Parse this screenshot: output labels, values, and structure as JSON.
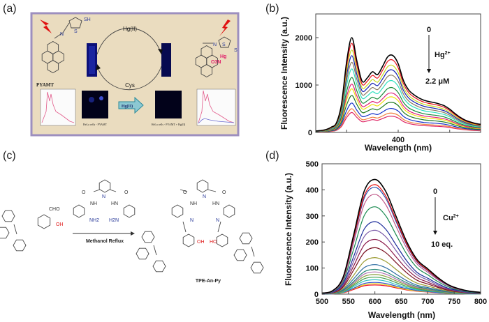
{
  "panel_labels": [
    "(a)",
    "(b)",
    "(c)",
    "(d)"
  ],
  "panel_a": {
    "probe_name": "PYAMT",
    "forward_reagent": "Hg(II)",
    "reverse_reagent": "Cys",
    "thiol_label": "SH",
    "n_label": "N",
    "s_label": "S",
    "metal_label": "Hg",
    "nitrate_label": "O3N",
    "arrow_label": "Hg(II)",
    "caption_left": "HeLa cells - PYAMT",
    "caption_right": "HeLa cells - PYAMT + Hg(II)",
    "colors": {
      "frame": "#9d8fbf",
      "background": "#eadcbf",
      "cuvette": "#0b0f78",
      "arrow": "#6fb6c4",
      "bolt": "#e01010"
    }
  },
  "panel_c": {
    "aldehyde_label": "CHO",
    "hydroxyl_label": "OH",
    "hydroxyl_label_rev": "HO",
    "amide_nh_left": "NH",
    "amide_nh_right": "HN",
    "amine_left": "NH2",
    "amine_right": "H2N",
    "pyridine_n": "N",
    "carbonyl_o": "O",
    "imine_n": "N",
    "condition": "Methanol Reflux",
    "product_name": "TPE-An-Py"
  },
  "chart_data": [
    {
      "type": "line",
      "panel": "(b)",
      "xlabel": "Wavelength (nm)",
      "ylabel": "Fluorescence Intensity (a.u.)",
      "xlim": [
        320,
        480
      ],
      "ylim": [
        0,
        2500
      ],
      "xticks": [
        350,
        400,
        450
      ],
      "xtick_labels": [
        "",
        "400",
        ""
      ],
      "yticks": [
        0,
        1000,
        2000
      ],
      "ytick_labels": [
        "0",
        "1000",
        "2000"
      ],
      "grid": false,
      "annotation": {
        "start": "0",
        "analyte": "Hg2+",
        "analyte_base": "Hg",
        "analyte_sup": "2+",
        "end": "2.2 μM",
        "direction": "down"
      },
      "x": [
        320,
        325,
        330,
        335,
        340,
        345,
        350,
        355,
        360,
        365,
        370,
        375,
        380,
        385,
        390,
        395,
        400,
        405,
        410,
        415,
        420,
        425,
        430,
        435,
        440,
        445,
        450,
        455,
        460,
        465,
        470,
        475,
        480
      ],
      "series": [
        {
          "color": "#000000",
          "values": [
            30,
            40,
            60,
            110,
            200,
            600,
            1500,
            2000,
            1500,
            1080,
            1150,
            1280,
            1220,
            1400,
            1600,
            1620,
            1450,
            1100,
            900,
            800,
            730,
            680,
            650,
            630,
            600,
            560,
            490,
            400,
            320,
            260,
            220,
            190,
            170
          ]
        },
        {
          "color": "#e8101a",
          "values": [
            28,
            38,
            56,
            103,
            188,
            564,
            1410,
            1880,
            1410,
            1015,
            1081,
            1203,
            1147,
            1316,
            1504,
            1523,
            1363,
            1034,
            846,
            752,
            686,
            639,
            611,
            592,
            564,
            526,
            461,
            376,
            301,
            244,
            207,
            179,
            160
          ]
        },
        {
          "color": "#c8d820",
          "values": [
            26,
            35,
            52,
            96,
            174,
            522,
            1305,
            1740,
            1305,
            940,
            1000,
            1114,
            1061,
            1218,
            1392,
            1409,
            1262,
            957,
            783,
            696,
            635,
            592,
            566,
            548,
            522,
            487,
            426,
            348,
            278,
            226,
            191,
            165,
            148
          ]
        },
        {
          "color": "#1420b0",
          "values": [
            24,
            32,
            49,
            89,
            162,
            486,
            1215,
            1620,
            1215,
            875,
            932,
            1037,
            988,
            1134,
            1296,
            1312,
            1175,
            891,
            729,
            648,
            591,
            551,
            527,
            510,
            486,
            454,
            397,
            324,
            259,
            211,
            178,
            154,
            138
          ]
        },
        {
          "color": "#8a7a60",
          "values": [
            22,
            30,
            44,
            81,
            148,
            444,
            1110,
            1480,
            1110,
            799,
            851,
            947,
            903,
            1036,
            1184,
            1199,
            1073,
            814,
            666,
            592,
            540,
            503,
            481,
            466,
            444,
            414,
            363,
            296,
            237,
            192,
            163,
            141,
            126
          ]
        },
        {
          "color": "#30e0c0",
          "values": [
            20,
            27,
            40,
            74,
            134,
            402,
            1005,
            1340,
            1005,
            724,
            771,
            858,
            817,
            938,
            1072,
            1085,
            972,
            737,
            603,
            536,
            489,
            456,
            436,
            422,
            402,
            375,
            328,
            268,
            214,
            174,
            147,
            127,
            114
          ]
        },
        {
          "color": "#1a8a3a",
          "values": [
            17,
            23,
            35,
            64,
            116,
            348,
            870,
            1160,
            870,
            626,
            667,
            742,
            708,
            812,
            928,
            940,
            841,
            638,
            522,
            464,
            423,
            394,
            377,
            365,
            348,
            325,
            284,
            232,
            186,
            151,
            128,
            110,
            99
          ]
        },
        {
          "color": "#e0207a",
          "values": [
            15,
            20,
            31,
            56,
            102,
            306,
            765,
            1020,
            765,
            551,
            587,
            653,
            622,
            714,
            816,
            826,
            740,
            561,
            459,
            408,
            372,
            347,
            332,
            321,
            306,
            286,
            250,
            204,
            163,
            133,
            112,
            97,
            87
          ]
        },
        {
          "color": "#f0e010",
          "values": [
            14,
            18,
            28,
            51,
            92,
            276,
            690,
            920,
            690,
            497,
            529,
            589,
            561,
            644,
            736,
            745,
            667,
            506,
            414,
            368,
            336,
            313,
            299,
            290,
            276,
            258,
            225,
            184,
            147,
            120,
            101,
            87,
            78
          ]
        },
        {
          "color": "#207a20",
          "values": [
            12,
            16,
            23,
            43,
            78,
            234,
            585,
            780,
            585,
            421,
            449,
            499,
            476,
            546,
            624,
            632,
            566,
            429,
            351,
            312,
            285,
            265,
            254,
            246,
            234,
            218,
            191,
            156,
            125,
            101,
            86,
            74,
            66
          ]
        },
        {
          "color": "#1430c8",
          "values": [
            9,
            12,
            19,
            34,
            62,
            186,
            465,
            620,
            465,
            335,
            357,
            397,
            378,
            434,
            496,
            502,
            450,
            341,
            279,
            248,
            226,
            211,
            202,
            195,
            186,
            174,
            152,
            124,
            99,
            81,
            68,
            59,
            53
          ]
        },
        {
          "color": "#f08040",
          "values": [
            8,
            10,
            15,
            28,
            50,
            150,
            375,
            500,
            375,
            270,
            288,
            320,
            305,
            350,
            400,
            405,
            363,
            275,
            225,
            200,
            183,
            170,
            163,
            158,
            150,
            140,
            123,
            100,
            80,
            65,
            55,
            48,
            43
          ]
        },
        {
          "color": "#e02868",
          "values": [
            6,
            8,
            13,
            23,
            42,
            126,
            315,
            420,
            315,
            227,
            242,
            269,
            256,
            294,
            336,
            340,
            305,
            231,
            189,
            168,
            153,
            143,
            137,
            132,
            126,
            118,
            103,
            84,
            67,
            55,
            46,
            40,
            36
          ]
        }
      ]
    },
    {
      "type": "line",
      "panel": "(d)",
      "xlabel": "Wavelength (nm)",
      "ylabel": "Fluorescence Intensity (a.u.)",
      "xlim": [
        500,
        800
      ],
      "ylim": [
        0,
        500
      ],
      "xticks": [
        500,
        550,
        600,
        650,
        700,
        750,
        800
      ],
      "xtick_labels": [
        "500",
        "550",
        "600",
        "650",
        "700",
        "750",
        "800"
      ],
      "yticks": [
        0,
        100,
        200,
        300,
        400,
        500
      ],
      "ytick_labels": [
        "0",
        "100",
        "200",
        "300",
        "400",
        "500"
      ],
      "grid": false,
      "annotation": {
        "start": "0",
        "analyte": "Cu2+",
        "analyte_base": "Cu",
        "analyte_sup": "2+",
        "end": "10 eq.",
        "direction": "down"
      },
      "x": [
        500,
        520,
        540,
        560,
        580,
        600,
        620,
        640,
        660,
        680,
        700,
        720,
        740,
        760,
        780,
        800
      ],
      "series": [
        {
          "color": "#000000",
          "values": [
            4,
            13,
            66,
            229,
            396,
            440,
            396,
            299,
            202,
            132,
            97,
            62,
            35,
            20,
            11,
            7
          ]
        },
        {
          "color": "#e81010",
          "values": [
            4,
            13,
            63,
            218,
            378,
            420,
            378,
            286,
            193,
            126,
            92,
            59,
            34,
            19,
            11,
            6
          ]
        },
        {
          "color": "#2a50b0",
          "values": [
            4,
            12,
            62,
            213,
            369,
            410,
            369,
            279,
            189,
            123,
            90,
            57,
            33,
            18,
            10,
            6
          ]
        },
        {
          "color": "#c05a8a",
          "values": [
            4,
            11,
            57,
            199,
            345,
            383,
            345,
            260,
            176,
            115,
            84,
            54,
            31,
            17,
            10,
            6
          ]
        },
        {
          "color": "#1a8a50",
          "values": [
            3,
            10,
            50,
            174,
            302,
            335,
            302,
            228,
            154,
            101,
            74,
            47,
            27,
            15,
            8,
            5
          ]
        },
        {
          "color": "#1a2a9a",
          "values": [
            3,
            8,
            42,
            145,
            250,
            278,
            250,
            189,
            128,
            83,
            61,
            39,
            22,
            13,
            7,
            4
          ]
        },
        {
          "color": "#7a5aa8",
          "values": [
            2,
            7,
            37,
            127,
            221,
            245,
            221,
            167,
            113,
            74,
            54,
            34,
            20,
            11,
            6,
            4
          ]
        },
        {
          "color": "#8a1a4a",
          "values": [
            2,
            6,
            32,
            109,
            189,
            210,
            189,
            143,
            97,
            63,
            46,
            29,
            17,
            9,
            5,
            3
          ]
        },
        {
          "color": "#7a1020",
          "values": [
            2,
            5,
            27,
            93,
            160,
            178,
            160,
            121,
            82,
            53,
            39,
            25,
            14,
            8,
            4,
            3
          ]
        },
        {
          "color": "#9a9a30",
          "values": [
            1,
            4,
            21,
            73,
            126,
            140,
            126,
            95,
            64,
            42,
            31,
            20,
            11,
            6,
            4,
            2
          ]
        },
        {
          "color": "#2a6aa0",
          "values": [
            1,
            3,
            17,
            59,
            102,
            113,
            102,
            77,
            52,
            34,
            25,
            16,
            9,
            5,
            3,
            2
          ]
        },
        {
          "color": "#2a8a7a",
          "values": [
            1,
            3,
            14,
            49,
            86,
            95,
            86,
            65,
            44,
            29,
            21,
            13,
            8,
            4,
            2,
            1
          ]
        },
        {
          "color": "#b070b0",
          "values": [
            1,
            3,
            13,
            44,
            77,
            85,
            77,
            58,
            39,
            26,
            19,
            12,
            7,
            4,
            2,
            1
          ]
        },
        {
          "color": "#8aa040",
          "values": [
            1,
            2,
            11,
            39,
            68,
            75,
            68,
            51,
            35,
            23,
            17,
            11,
            6,
            3,
            2,
            1
          ]
        },
        {
          "color": "#40a050",
          "values": [
            1,
            2,
            10,
            34,
            59,
            65,
            59,
            44,
            30,
            20,
            14,
            9,
            5,
            3,
            2,
            1
          ]
        },
        {
          "color": "#30c0c0",
          "values": [
            1,
            2,
            8,
            29,
            50,
            55,
            50,
            37,
            25,
            17,
            12,
            8,
            4,
            2,
            1,
            1
          ]
        },
        {
          "color": "#3050d0",
          "values": [
            0,
            1,
            7,
            23,
            41,
            45,
            41,
            31,
            21,
            14,
            10,
            6,
            4,
            2,
            1,
            1
          ]
        },
        {
          "color": "#e8d820",
          "values": [
            0,
            1,
            6,
            21,
            36,
            40,
            36,
            27,
            18,
            12,
            9,
            6,
            3,
            2,
            1,
            1
          ]
        },
        {
          "color": "#f01030",
          "values": [
            0,
            1,
            5,
            18,
            32,
            35,
            32,
            24,
            16,
            11,
            8,
            5,
            3,
            2,
            1,
            1
          ]
        }
      ]
    }
  ]
}
